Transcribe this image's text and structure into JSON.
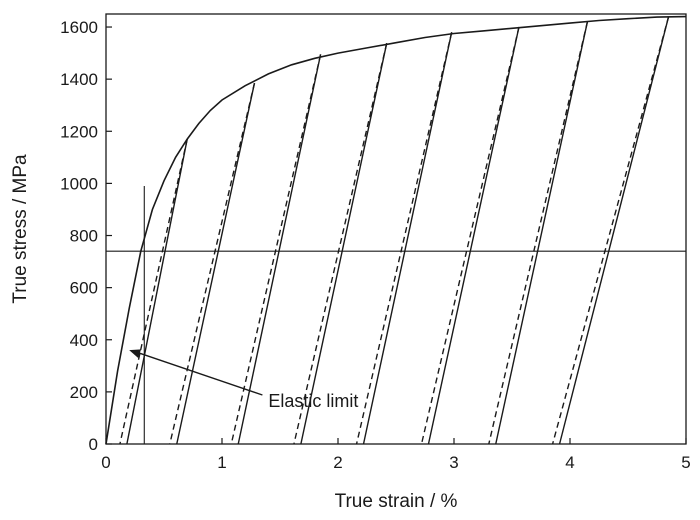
{
  "chart_data": {
    "type": "line",
    "title": "",
    "xlabel": "True strain / %",
    "ylabel": "True stress / MPa",
    "xlim": [
      0,
      5
    ],
    "ylim": [
      0,
      1650
    ],
    "xticks": [
      0,
      1,
      2,
      3,
      4,
      5
    ],
    "yticks": [
      0,
      200,
      400,
      600,
      800,
      1000,
      1200,
      1400,
      1600
    ],
    "grid": false,
    "legend": "none",
    "colors": {
      "line": "#1a1a1a"
    },
    "monotonic_curve": [
      [
        0,
        0
      ],
      [
        0.1,
        280
      ],
      [
        0.2,
        520
      ],
      [
        0.3,
        740
      ],
      [
        0.4,
        900
      ],
      [
        0.5,
        1010
      ],
      [
        0.6,
        1100
      ],
      [
        0.7,
        1170
      ],
      [
        0.8,
        1230
      ],
      [
        0.9,
        1280
      ],
      [
        1.0,
        1320
      ],
      [
        1.2,
        1375
      ],
      [
        1.4,
        1420
      ],
      [
        1.6,
        1455
      ],
      [
        1.8,
        1480
      ],
      [
        2.0,
        1500
      ],
      [
        2.25,
        1520
      ],
      [
        2.5,
        1540
      ],
      [
        2.75,
        1560
      ],
      [
        3.0,
        1575
      ],
      [
        3.25,
        1585
      ],
      [
        3.5,
        1595
      ],
      [
        3.75,
        1605
      ],
      [
        4.0,
        1615
      ],
      [
        4.25,
        1625
      ],
      [
        4.5,
        1632
      ],
      [
        4.75,
        1638
      ],
      [
        5.0,
        1640
      ]
    ],
    "unload_reload_cycles": [
      {
        "peak": [
          0.7,
          1170
        ],
        "unload": [
          0.12,
          0
        ],
        "reload": [
          0.7,
          1170
        ]
      },
      {
        "peak": [
          1.28,
          1385
        ],
        "unload": [
          0.55,
          0
        ],
        "reload": [
          1.28,
          1385
        ]
      },
      {
        "peak": [
          1.85,
          1495
        ],
        "unload": [
          1.08,
          0
        ],
        "reload": [
          1.85,
          1495
        ]
      },
      {
        "peak": [
          2.42,
          1538
        ],
        "unload": [
          1.62,
          0
        ],
        "reload": [
          2.42,
          1538
        ]
      },
      {
        "peak": [
          2.98,
          1580
        ],
        "unload": [
          2.16,
          0
        ],
        "reload": [
          2.98,
          1580
        ]
      },
      {
        "peak": [
          3.56,
          1600
        ],
        "unload": [
          2.72,
          0
        ],
        "reload": [
          3.56,
          1600
        ]
      },
      {
        "peak": [
          4.15,
          1620
        ],
        "unload": [
          3.3,
          0
        ],
        "reload": [
          4.15,
          1620
        ]
      },
      {
        "peak": [
          4.85,
          1640
        ],
        "unload": [
          3.85,
          0
        ],
        "reload": [
          4.85,
          1640
        ]
      }
    ],
    "reference_lines": {
      "horizontal_stress": 740,
      "vertical_strain": 0.33,
      "vertical_top_stress": 990
    },
    "annotation": {
      "text": "Elastic limit",
      "target": [
        0.2,
        360
      ],
      "text_at": [
        1.4,
        165
      ]
    }
  }
}
